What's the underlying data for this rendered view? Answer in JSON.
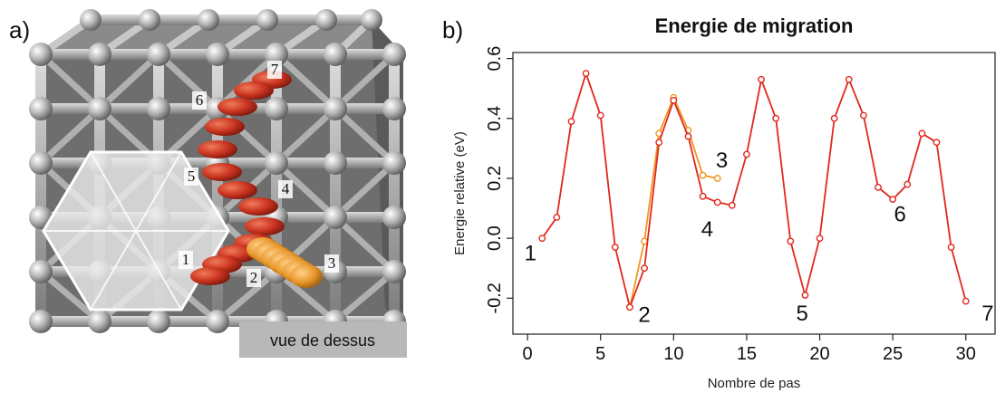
{
  "panels": {
    "a_label": "a)",
    "b_label": "b)"
  },
  "panel_a": {
    "caption": "vue de dessus",
    "atom_labels": [
      "1",
      "2",
      "3",
      "4",
      "5",
      "6",
      "7"
    ],
    "colors": {
      "lattice": "#9a9a9a",
      "path_main": "#c8321e",
      "path_alt": "#e8962a",
      "hexagon": "#e8e8e8"
    }
  },
  "chart_data": {
    "type": "line",
    "title": "Energie de migration",
    "xlabel": "Nombre de pas",
    "ylabel": "Energie relative (eV)",
    "xlim": [
      -1,
      32
    ],
    "ylim": [
      -0.32,
      0.62
    ],
    "xticks": [
      0,
      5,
      10,
      15,
      20,
      25,
      30
    ],
    "yticks": [
      -0.2,
      0.0,
      0.2,
      0.4,
      0.6
    ],
    "ytick_labels": [
      "-0.2",
      "0.0",
      "0.2",
      "0.4",
      "0.6"
    ],
    "series": [
      {
        "color": "#e0281e",
        "x": [
          1,
          2,
          3,
          4,
          5,
          6,
          7,
          8,
          9,
          10,
          11,
          12,
          13,
          14,
          15,
          16,
          17,
          18,
          19,
          20,
          21,
          22,
          23,
          24,
          25,
          26,
          27,
          28,
          29,
          30
        ],
        "y": [
          0.0,
          0.07,
          0.39,
          0.55,
          0.41,
          -0.03,
          -0.23,
          -0.1,
          0.32,
          0.46,
          0.34,
          0.14,
          0.12,
          0.11,
          0.28,
          0.53,
          0.4,
          -0.01,
          -0.19,
          0.0,
          0.4,
          0.53,
          0.41,
          0.17,
          0.13,
          0.18,
          0.35,
          0.32,
          -0.03,
          -0.21
        ]
      },
      {
        "color": "#f0961e",
        "x": [
          7,
          8,
          9,
          10,
          11,
          12,
          13
        ],
        "y": [
          -0.23,
          -0.01,
          0.35,
          0.47,
          0.36,
          0.21,
          0.2
        ]
      }
    ],
    "point_labels": [
      {
        "text": "1",
        "x": 0.2,
        "y": -0.05
      },
      {
        "text": "2",
        "x": 8.0,
        "y": -0.255
      },
      {
        "text": "3",
        "x": 13.3,
        "y": 0.26
      },
      {
        "text": "4",
        "x": 12.3,
        "y": 0.03
      },
      {
        "text": "5",
        "x": 18.8,
        "y": -0.25
      },
      {
        "text": "6",
        "x": 25.5,
        "y": 0.08
      },
      {
        "text": "7",
        "x": 31.5,
        "y": -0.25
      }
    ],
    "grid": false
  }
}
